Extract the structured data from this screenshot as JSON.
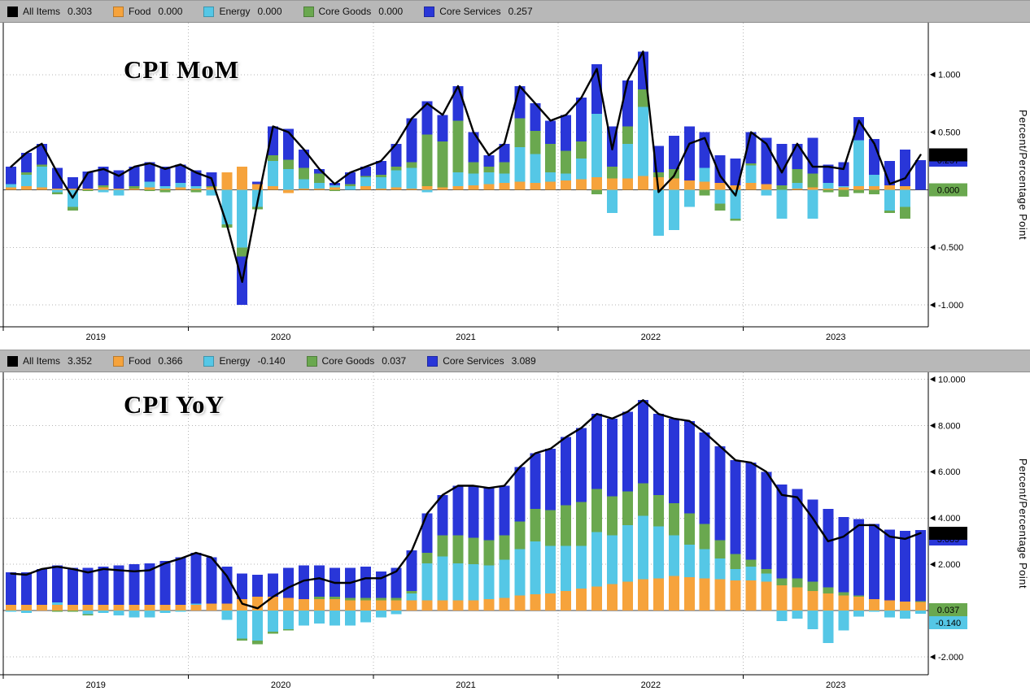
{
  "colors": {
    "all_items": "#000000",
    "food": "#f6a33c",
    "energy": "#55c7e6",
    "core_goods": "#6aa84f",
    "core_services": "#2936d8",
    "legend_bg": "#b8b8b8",
    "grid": "#b5b5b5",
    "zero_line": "#444444",
    "plot_bg": "#ffffff"
  },
  "right_axis_title": "Percent/Percentage Point",
  "chart_data": [
    {
      "type": "bar",
      "stacked": true,
      "line_overlay": "All Items",
      "title": "CPI MoM",
      "legend": [
        {
          "label": "All Items",
          "value": "0.303",
          "color_key": "all_items"
        },
        {
          "label": "Food",
          "value": "0.000",
          "color_key": "food"
        },
        {
          "label": "Energy",
          "value": "0.000",
          "color_key": "energy"
        },
        {
          "label": "Core Goods",
          "value": "0.000",
          "color_key": "core_goods"
        },
        {
          "label": "Core Services",
          "value": "0.257",
          "color_key": "core_services"
        }
      ],
      "ylim": [
        -1.19,
        1.45
      ],
      "yticks": [
        "1.000",
        "0.500",
        "0.000",
        "-0.500",
        "-1.000"
      ],
      "ytick_values": [
        1.0,
        0.5,
        0.0,
        -0.5,
        -1.0
      ],
      "year_labels": [
        "2019",
        "2020",
        "2021",
        "2022",
        "2023"
      ],
      "badges": [
        {
          "text": "0.257",
          "value": 0.257,
          "bg": "#2936d8",
          "fg": "#ffffff",
          "behind": true
        },
        {
          "text": "0.303",
          "value": 0.303,
          "bg": "#000000",
          "fg": "#ffffff"
        },
        {
          "text": "0.000",
          "value": 0.0,
          "bg": "#6aa84f",
          "fg": "#000000"
        }
      ],
      "x": [
        "2019-01",
        "2019-02",
        "2019-03",
        "2019-04",
        "2019-05",
        "2019-06",
        "2019-07",
        "2019-08",
        "2019-09",
        "2019-10",
        "2019-11",
        "2019-12",
        "2020-01",
        "2020-02",
        "2020-03",
        "2020-04",
        "2020-05",
        "2020-06",
        "2020-07",
        "2020-08",
        "2020-09",
        "2020-10",
        "2020-11",
        "2020-12",
        "2021-01",
        "2021-02",
        "2021-03",
        "2021-04",
        "2021-05",
        "2021-06",
        "2021-07",
        "2021-08",
        "2021-09",
        "2021-10",
        "2021-11",
        "2021-12",
        "2022-01",
        "2022-02",
        "2022-03",
        "2022-04",
        "2022-05",
        "2022-06",
        "2022-07",
        "2022-08",
        "2022-09",
        "2022-10",
        "2022-11",
        "2022-12",
        "2023-01",
        "2023-02",
        "2023-03",
        "2023-04",
        "2023-05",
        "2023-06",
        "2023-07",
        "2023-08",
        "2023-09",
        "2023-10",
        "2023-11",
        "2023-12"
      ],
      "series": [
        {
          "name": "Food",
          "color_key": "food",
          "values": [
            0.02,
            0.03,
            0.02,
            0.01,
            0.01,
            0.01,
            0.02,
            0.01,
            0.01,
            0.02,
            0.01,
            0.02,
            0.01,
            0.02,
            0.15,
            0.2,
            0.05,
            0.03,
            -0.03,
            0.01,
            0.01,
            0.02,
            0.0,
            0.03,
            0.01,
            0.02,
            0.01,
            0.03,
            0.02,
            0.03,
            0.04,
            0.05,
            0.06,
            0.07,
            0.06,
            0.07,
            0.08,
            0.09,
            0.11,
            0.1,
            0.1,
            0.12,
            0.11,
            0.1,
            0.08,
            0.07,
            0.06,
            0.04,
            0.06,
            0.05,
            0.0,
            0.01,
            0.02,
            0.01,
            0.02,
            0.03,
            0.03,
            0.04,
            0.03,
            0.0
          ]
        },
        {
          "name": "Energy",
          "color_key": "energy",
          "values": [
            0.03,
            0.1,
            0.18,
            -0.02,
            -0.15,
            0.0,
            -0.02,
            -0.05,
            0.0,
            0.05,
            0.02,
            0.04,
            0.02,
            -0.05,
            -0.3,
            -0.5,
            -0.15,
            0.22,
            0.18,
            0.08,
            0.05,
            0.02,
            0.03,
            0.08,
            0.1,
            0.15,
            0.18,
            -0.02,
            0.0,
            0.12,
            0.1,
            0.1,
            0.08,
            0.3,
            0.25,
            0.08,
            0.06,
            0.18,
            0.55,
            -0.2,
            0.3,
            0.6,
            -0.4,
            -0.35,
            -0.15,
            0.12,
            -0.12,
            -0.25,
            0.15,
            -0.05,
            -0.25,
            0.05,
            -0.25,
            0.05,
            0.01,
            0.4,
            0.1,
            -0.18,
            -0.15,
            0.0
          ]
        },
        {
          "name": "Core Goods",
          "color_key": "core_goods",
          "values": [
            0.0,
            0.02,
            0.02,
            -0.02,
            -0.03,
            -0.01,
            0.02,
            0.0,
            0.02,
            -0.01,
            -0.02,
            0.0,
            -0.02,
            0.01,
            -0.03,
            -0.08,
            -0.02,
            0.05,
            0.08,
            0.1,
            0.08,
            -0.01,
            0.02,
            0.01,
            0.02,
            0.03,
            0.05,
            0.45,
            0.4,
            0.45,
            0.1,
            0.05,
            0.1,
            0.25,
            0.2,
            0.25,
            0.2,
            0.15,
            -0.04,
            0.1,
            0.15,
            0.15,
            0.04,
            0.08,
            0.0,
            -0.05,
            -0.06,
            -0.02,
            0.02,
            0.0,
            0.04,
            0.12,
            0.12,
            -0.02,
            -0.06,
            -0.03,
            -0.04,
            -0.02,
            -0.1,
            0.0
          ]
        },
        {
          "name": "Core Services",
          "color_key": "core_services",
          "values": [
            0.15,
            0.17,
            0.18,
            0.18,
            0.1,
            0.15,
            0.16,
            0.16,
            0.17,
            0.17,
            0.17,
            0.16,
            0.14,
            0.12,
            0.0,
            -0.42,
            0.02,
            0.25,
            0.27,
            0.16,
            0.04,
            0.02,
            0.1,
            0.08,
            0.12,
            0.2,
            0.38,
            0.29,
            0.23,
            0.3,
            0.26,
            0.1,
            0.16,
            0.28,
            0.24,
            0.2,
            0.31,
            0.38,
            0.43,
            0.35,
            0.4,
            0.33,
            0.23,
            0.29,
            0.47,
            0.31,
            0.24,
            0.23,
            0.27,
            0.4,
            0.36,
            0.22,
            0.31,
            0.16,
            0.21,
            0.2,
            0.31,
            0.21,
            0.32,
            0.257
          ]
        }
      ],
      "line": {
        "name": "All Items",
        "color_key": "all_items",
        "values": [
          0.2,
          0.32,
          0.4,
          0.15,
          -0.07,
          0.15,
          0.18,
          0.12,
          0.2,
          0.23,
          0.18,
          0.22,
          0.15,
          0.1,
          -0.3,
          -0.8,
          -0.1,
          0.55,
          0.5,
          0.35,
          0.18,
          0.05,
          0.15,
          0.2,
          0.25,
          0.4,
          0.62,
          0.75,
          0.65,
          0.9,
          0.5,
          0.3,
          0.4,
          0.9,
          0.75,
          0.6,
          0.65,
          0.8,
          1.05,
          0.35,
          0.95,
          1.2,
          -0.02,
          0.12,
          0.4,
          0.45,
          0.12,
          -0.05,
          0.5,
          0.4,
          0.15,
          0.4,
          0.2,
          0.2,
          0.18,
          0.6,
          0.4,
          0.05,
          0.1,
          0.303
        ]
      }
    },
    {
      "type": "bar",
      "stacked": true,
      "line_overlay": "All Items",
      "title": "CPI YoY",
      "legend": [
        {
          "label": "All Items",
          "value": "3.352",
          "color_key": "all_items"
        },
        {
          "label": "Food",
          "value": "0.366",
          "color_key": "food"
        },
        {
          "label": "Energy",
          "value": "-0.140",
          "color_key": "energy"
        },
        {
          "label": "Core Goods",
          "value": "0.037",
          "color_key": "core_goods"
        },
        {
          "label": "Core Services",
          "value": "3.089",
          "color_key": "core_services"
        }
      ],
      "ylim": [
        -2.77,
        10.3
      ],
      "yticks": [
        "10.000",
        "8.000",
        "6.000",
        "4.000",
        "2.000",
        "0.000",
        "-2.000"
      ],
      "ytick_values": [
        10.0,
        8.0,
        6.0,
        4.0,
        2.0,
        0.0,
        -2.0
      ],
      "year_labels": [
        "2019",
        "2020",
        "2021",
        "2022",
        "2023"
      ],
      "badges": [
        {
          "text": "3.089",
          "value": 3.089,
          "bg": "#2936d8",
          "fg": "#ffffff",
          "behind": true
        },
        {
          "text": "3.352",
          "value": 3.352,
          "bg": "#000000",
          "fg": "#ffffff"
        },
        {
          "text": "0.037",
          "value": 0.037,
          "bg": "#6aa84f",
          "fg": "#000000"
        },
        {
          "text": "-0.140",
          "value": -0.14,
          "bg": "#55c7e6",
          "fg": "#000000"
        }
      ],
      "x": [
        "2019-01",
        "2019-02",
        "2019-03",
        "2019-04",
        "2019-05",
        "2019-06",
        "2019-07",
        "2019-08",
        "2019-09",
        "2019-10",
        "2019-11",
        "2019-12",
        "2020-01",
        "2020-02",
        "2020-03",
        "2020-04",
        "2020-05",
        "2020-06",
        "2020-07",
        "2020-08",
        "2020-09",
        "2020-10",
        "2020-11",
        "2020-12",
        "2021-01",
        "2021-02",
        "2021-03",
        "2021-04",
        "2021-05",
        "2021-06",
        "2021-07",
        "2021-08",
        "2021-09",
        "2021-10",
        "2021-11",
        "2021-12",
        "2022-01",
        "2022-02",
        "2022-03",
        "2022-04",
        "2022-05",
        "2022-06",
        "2022-07",
        "2022-08",
        "2022-09",
        "2022-10",
        "2022-11",
        "2022-12",
        "2023-01",
        "2023-02",
        "2023-03",
        "2023-04",
        "2023-05",
        "2023-06",
        "2023-07",
        "2023-08",
        "2023-09",
        "2023-10",
        "2023-11",
        "2023-12"
      ],
      "series": [
        {
          "name": "Food",
          "color_key": "food",
          "values": [
            0.25,
            0.25,
            0.25,
            0.25,
            0.25,
            0.25,
            0.25,
            0.25,
            0.25,
            0.25,
            0.25,
            0.25,
            0.25,
            0.3,
            0.3,
            0.5,
            0.6,
            0.6,
            0.55,
            0.5,
            0.5,
            0.5,
            0.45,
            0.45,
            0.45,
            0.45,
            0.45,
            0.45,
            0.45,
            0.45,
            0.45,
            0.5,
            0.55,
            0.65,
            0.7,
            0.75,
            0.85,
            0.95,
            1.05,
            1.15,
            1.25,
            1.35,
            1.4,
            1.5,
            1.45,
            1.4,
            1.35,
            1.3,
            1.3,
            1.25,
            1.1,
            1.0,
            0.85,
            0.75,
            0.65,
            0.6,
            0.5,
            0.45,
            0.4,
            0.366
          ]
        },
        {
          "name": "Energy",
          "color_key": "energy",
          "values": [
            -0.05,
            -0.1,
            0.0,
            0.1,
            0.0,
            -0.15,
            -0.1,
            -0.2,
            -0.3,
            -0.3,
            -0.1,
            -0.05,
            0.05,
            0.0,
            -0.4,
            -1.2,
            -1.3,
            -0.9,
            -0.8,
            -0.65,
            -0.55,
            -0.65,
            -0.65,
            -0.5,
            -0.3,
            -0.15,
            0.3,
            1.6,
            1.9,
            1.6,
            1.55,
            1.45,
            1.65,
            2.0,
            2.3,
            2.05,
            1.95,
            1.85,
            2.35,
            2.1,
            2.45,
            2.75,
            2.25,
            1.75,
            1.4,
            1.25,
            0.9,
            0.5,
            0.6,
            0.35,
            -0.45,
            -0.35,
            -0.8,
            -1.4,
            -0.85,
            -0.25,
            -0.05,
            -0.3,
            -0.35,
            -0.14
          ]
        },
        {
          "name": "Core Goods",
          "color_key": "core_goods",
          "values": [
            0.0,
            0.0,
            0.0,
            -0.05,
            -0.05,
            -0.05,
            0.0,
            0.0,
            0.0,
            0.0,
            0.0,
            0.0,
            0.0,
            0.0,
            0.0,
            -0.1,
            -0.15,
            -0.1,
            -0.05,
            0.0,
            0.1,
            0.1,
            0.1,
            0.1,
            0.1,
            0.1,
            0.1,
            0.45,
            0.9,
            1.2,
            1.15,
            1.1,
            1.05,
            1.2,
            1.4,
            1.55,
            1.75,
            1.9,
            1.85,
            1.7,
            1.45,
            1.4,
            1.35,
            1.4,
            1.35,
            1.1,
            0.8,
            0.65,
            0.3,
            0.2,
            0.3,
            0.4,
            0.4,
            0.25,
            0.15,
            0.05,
            0.0,
            0.0,
            0.0,
            0.037
          ]
        },
        {
          "name": "Core Services",
          "color_key": "core_services",
          "values": [
            1.4,
            1.4,
            1.55,
            1.6,
            1.6,
            1.6,
            1.65,
            1.7,
            1.75,
            1.8,
            1.9,
            2.05,
            2.2,
            2.0,
            1.6,
            1.1,
            0.95,
            1.0,
            1.3,
            1.45,
            1.35,
            1.25,
            1.3,
            1.35,
            1.15,
            1.3,
            1.75,
            1.7,
            1.75,
            2.15,
            2.25,
            2.25,
            2.15,
            2.35,
            2.4,
            2.65,
            2.95,
            3.2,
            3.25,
            3.35,
            3.45,
            3.6,
            3.5,
            3.65,
            4.0,
            3.95,
            4.05,
            4.05,
            4.2,
            4.2,
            4.05,
            3.85,
            3.55,
            3.4,
            3.25,
            3.3,
            3.25,
            3.05,
            3.05,
            3.089
          ]
        }
      ],
      "line": {
        "name": "All Items",
        "color_key": "all_items",
        "values": [
          1.6,
          1.55,
          1.8,
          1.9,
          1.8,
          1.65,
          1.8,
          1.75,
          1.7,
          1.75,
          2.05,
          2.25,
          2.5,
          2.3,
          1.5,
          0.3,
          0.1,
          0.6,
          1.0,
          1.3,
          1.4,
          1.2,
          1.2,
          1.4,
          1.4,
          1.7,
          2.6,
          4.2,
          5.0,
          5.4,
          5.4,
          5.3,
          5.4,
          6.2,
          6.8,
          7.0,
          7.5,
          7.9,
          8.5,
          8.3,
          8.6,
          9.1,
          8.5,
          8.3,
          8.2,
          7.7,
          7.1,
          6.5,
          6.4,
          6.0,
          5.0,
          4.9,
          4.0,
          3.0,
          3.2,
          3.7,
          3.7,
          3.2,
          3.1,
          3.352
        ]
      }
    }
  ]
}
